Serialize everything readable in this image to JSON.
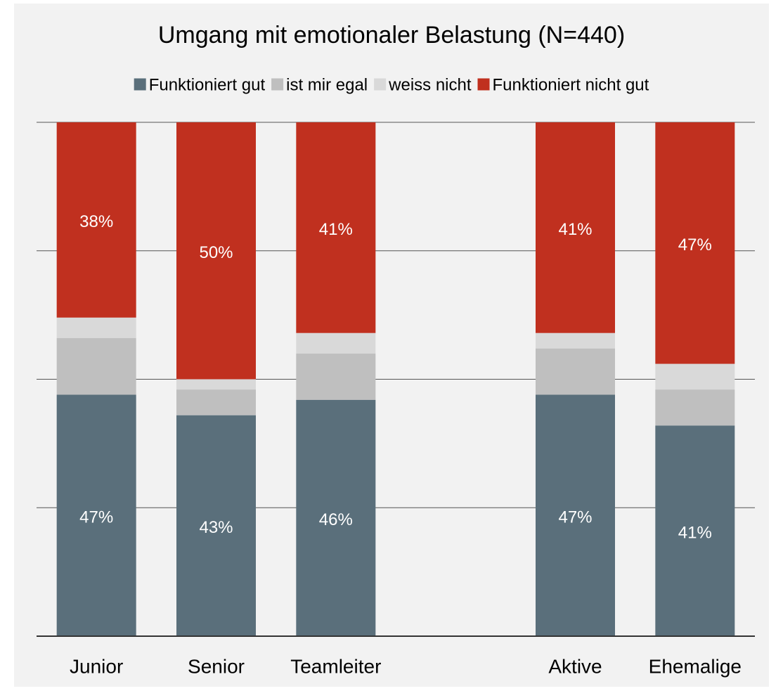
{
  "chart_data": {
    "type": "stacked_bar",
    "title": "Umgang mit emotionaler Belastung (N=440)",
    "categories": [
      "Junior",
      "Senior",
      "Teamleiter",
      null,
      "Aktive",
      "Ehemalige"
    ],
    "series": [
      {
        "name": "Funktioniert gut",
        "color": "#5a6f7b",
        "values": [
          47,
          43,
          46,
          null,
          47,
          41
        ],
        "value_labels": [
          "47%",
          "43%",
          "46%",
          null,
          "47%",
          "41%"
        ]
      },
      {
        "name": "ist mir egal",
        "color": "#bfbfbf",
        "values": [
          11,
          5,
          9,
          null,
          9,
          7
        ]
      },
      {
        "name": "weiss nicht",
        "color": "#d9d9d9",
        "values": [
          4,
          2,
          4,
          null,
          3,
          5
        ]
      },
      {
        "name": "Funktioniert nicht gut",
        "color": "#c0301f",
        "values": [
          38,
          50,
          41,
          null,
          41,
          47
        ],
        "value_labels": [
          "38%",
          "50%",
          "41%",
          null,
          "41%",
          "47%"
        ]
      }
    ],
    "ylim": [
      0,
      100
    ],
    "yticks": [
      0,
      25,
      50,
      75,
      100
    ],
    "grid": true
  }
}
